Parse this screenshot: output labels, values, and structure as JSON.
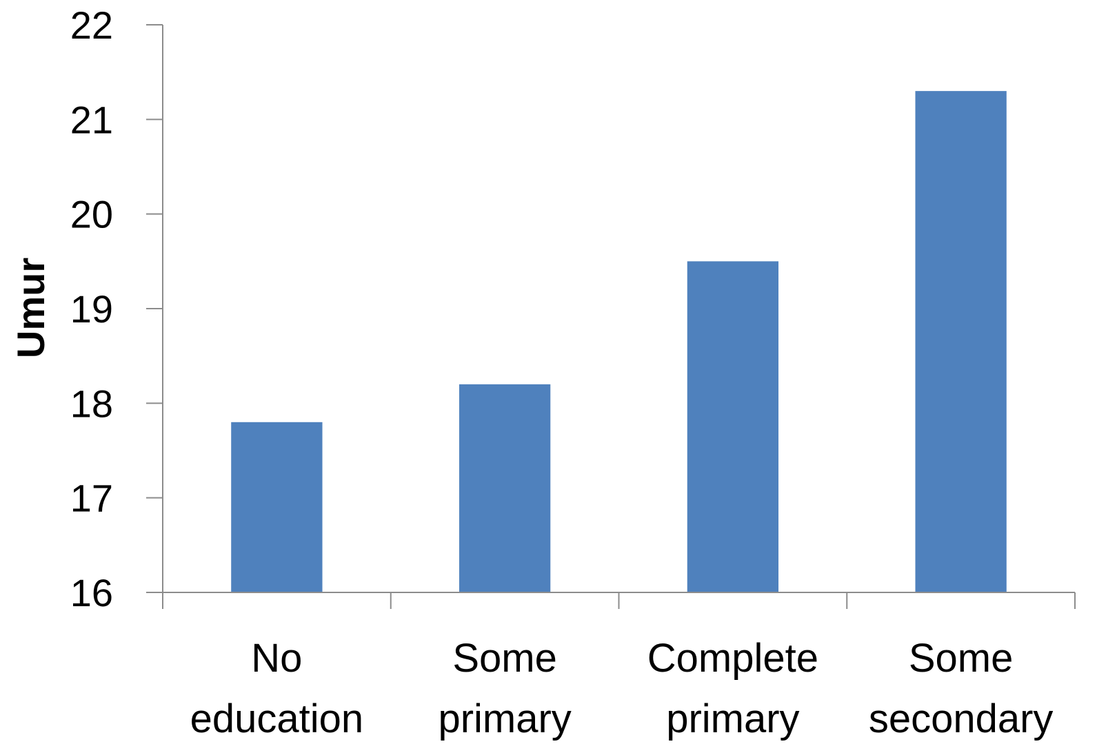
{
  "chart_data": {
    "type": "bar",
    "categories": [
      [
        "No",
        "education"
      ],
      [
        "Some",
        "primary"
      ],
      [
        "Complete",
        "primary"
      ],
      [
        "Some",
        "secondary"
      ]
    ],
    "values": [
      17.8,
      18.2,
      19.5,
      21.3
    ],
    "title": "",
    "xlabel": "",
    "ylabel": "Umur",
    "ylim": [
      16,
      22
    ],
    "yticks": [
      16,
      17,
      18,
      19,
      20,
      21,
      22
    ],
    "grid": false,
    "legend": "none",
    "bar_color": "#4f81bd",
    "axis_color": "#8c8c8c"
  }
}
